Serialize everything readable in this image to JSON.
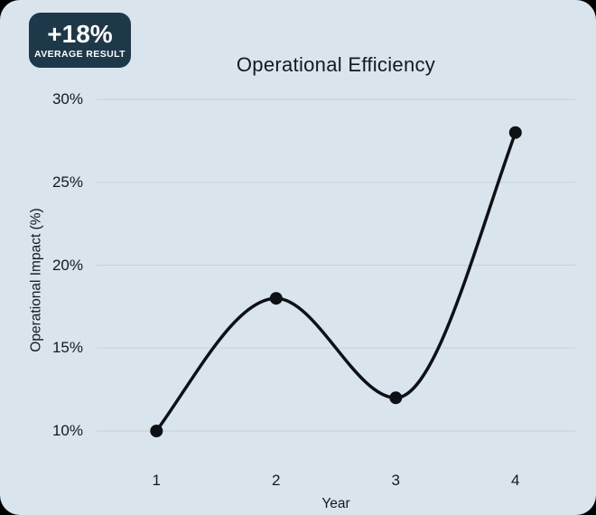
{
  "badge": {
    "value": "+18%",
    "label": "AVERAGE RESULT"
  },
  "chart_data": {
    "type": "line",
    "title": "Operational Efficiency",
    "xlabel": "Year",
    "ylabel": "Operational Impact (%)",
    "categories": [
      "1",
      "2",
      "3",
      "4"
    ],
    "series": [
      {
        "name": "Operational Impact",
        "values": [
          10,
          18,
          12,
          28
        ]
      }
    ],
    "ylim": [
      10,
      30
    ],
    "yticks": [
      10,
      15,
      20,
      25,
      30
    ],
    "ytick_labels": [
      "10%",
      "15%",
      "20%",
      "25%",
      "30%"
    ],
    "grid": "horizontal",
    "legend_position": "none",
    "marker": "circle",
    "curve": "smooth"
  },
  "colors": {
    "card_bg": "#d9e4ec",
    "gridline": "#c7d1d9",
    "line": "#0d1014",
    "marker": "#0d1014",
    "badge_bg": "#1c3849",
    "badge_text": "#ffffff",
    "text": "#15191d"
  }
}
